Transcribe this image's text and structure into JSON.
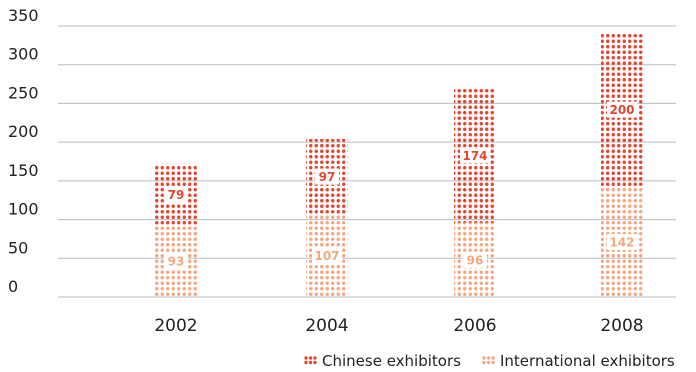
{
  "chart_data": {
    "type": "bar",
    "stacked": true,
    "categories": [
      "2002",
      "2004",
      "2006",
      "2008"
    ],
    "series": [
      {
        "name": "International exhibitors",
        "values": [
          93,
          107,
          96,
          142
        ],
        "color": "#f4a882"
      },
      {
        "name": "Chinese exhibitors",
        "values": [
          79,
          97,
          174,
          200
        ],
        "color": "#e5452e"
      }
    ],
    "ylim": [
      0,
      350
    ],
    "yticks": [
      0,
      50,
      100,
      150,
      200,
      250,
      300,
      350
    ],
    "grid": true,
    "legend": "bottom-right"
  }
}
